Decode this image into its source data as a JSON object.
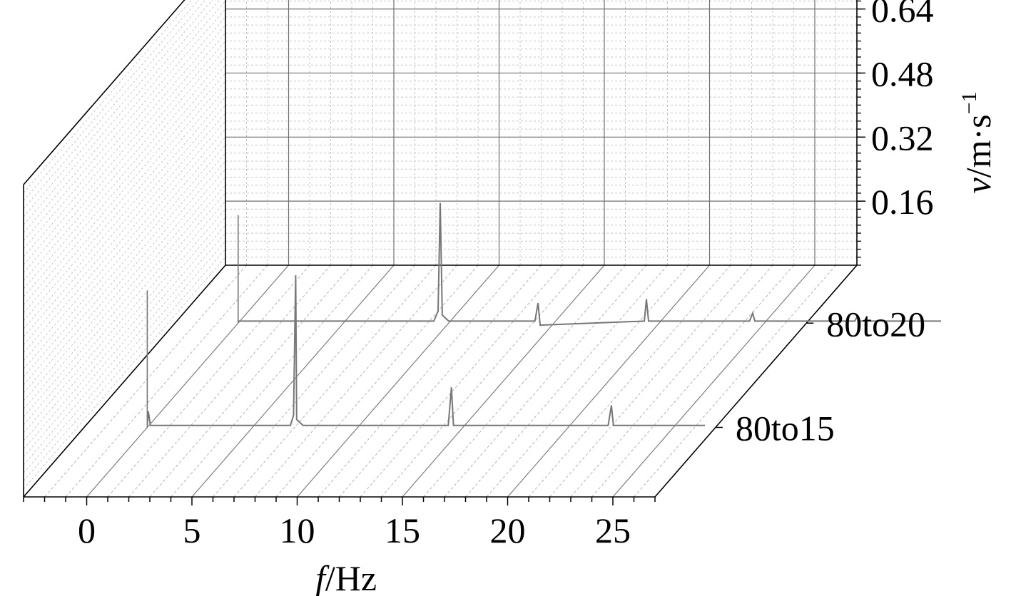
{
  "chart_data": {
    "type": "waterfall-line",
    "xlabel": {
      "var": "f",
      "unit": "/Hz"
    },
    "zlabel": {
      "var": "v",
      "unit": "/m·s",
      "exponent": "−1"
    },
    "x_ticks": [
      "0",
      "5",
      "10",
      "15",
      "20",
      "25"
    ],
    "z_ticks": [
      "0.16",
      "0.32",
      "0.48",
      "0.64"
    ],
    "xlim": [
      -3,
      27
    ],
    "zlim": [
      0,
      0.78
    ],
    "depth_categories": [
      "80to15",
      "80to20"
    ],
    "grid": true,
    "series": [
      {
        "name": "80to15",
        "points": [
          [
            0,
            0.005
          ],
          [
            0.05,
            0.04
          ],
          [
            0.15,
            0.005
          ],
          [
            6.8,
            0.005
          ],
          [
            6.95,
            0.03
          ],
          [
            7.05,
            0.38
          ],
          [
            7.1,
            0.02
          ],
          [
            7.4,
            0.005
          ],
          [
            14.3,
            0.005
          ],
          [
            14.45,
            0.1
          ],
          [
            14.55,
            0.005
          ],
          [
            21.9,
            0.005
          ],
          [
            22.05,
            0.055
          ],
          [
            22.15,
            0.005
          ],
          [
            26.5,
            0.005
          ]
        ]
      },
      {
        "name": "80to20",
        "points": [
          [
            0,
            0.005
          ],
          [
            9.3,
            0.005
          ],
          [
            9.5,
            0.03
          ],
          [
            9.6,
            0.3
          ],
          [
            9.7,
            0.02
          ],
          [
            10,
            0.005
          ],
          [
            14.1,
            0.005
          ],
          [
            14.25,
            0.05
          ],
          [
            14.35,
            -0.005
          ],
          [
            19.3,
            0.005
          ],
          [
            19.4,
            0.06
          ],
          [
            19.5,
            0.005
          ],
          [
            24.3,
            0.005
          ],
          [
            24.45,
            0.025
          ],
          [
            24.55,
            0.005
          ],
          [
            29.3,
            0.005
          ],
          [
            29.4,
            0.015
          ],
          [
            29.5,
            0.005
          ],
          [
            33.4,
            0.005
          ]
        ]
      }
    ]
  }
}
